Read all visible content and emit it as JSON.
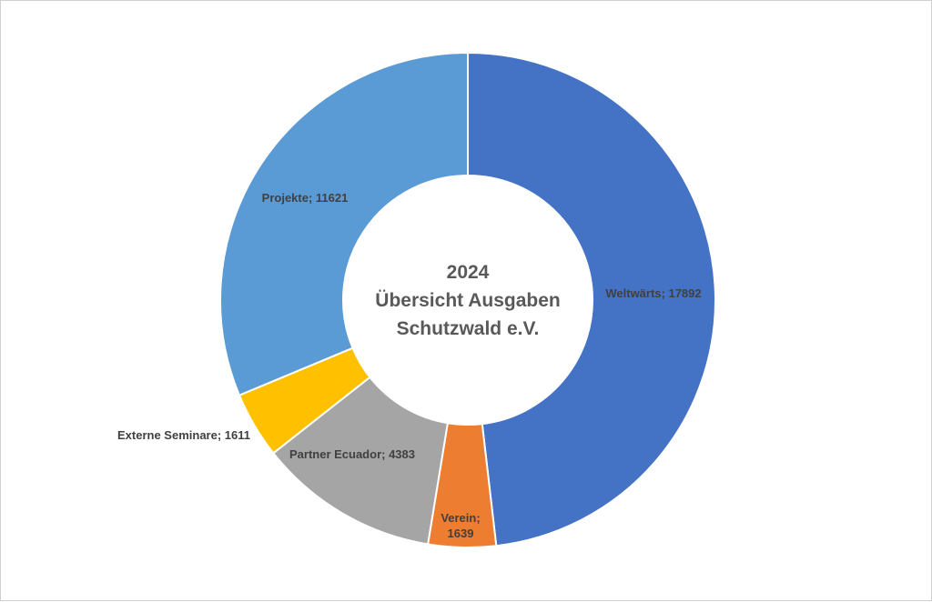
{
  "chart_data": {
    "type": "pie",
    "variant": "donut",
    "title_lines": [
      "2024",
      "Übersicht Ausgaben",
      "Schutzwald e.V."
    ],
    "slices": [
      {
        "label": "Weltwärts",
        "value": 17892,
        "color": "#4472C4",
        "display": [
          "Weltwärts; 17892"
        ]
      },
      {
        "label": "Verein",
        "value": 1639,
        "color": "#ED7D31",
        "display": [
          "Verein;",
          "1639"
        ]
      },
      {
        "label": "Partner Ecuador",
        "value": 4383,
        "color": "#A5A5A5",
        "display": [
          "Partner Ecuador; 4383"
        ]
      },
      {
        "label": "Externe Seminare",
        "value": 1611,
        "color": "#FFC000",
        "display": [
          "Externe Seminare; 1611"
        ]
      },
      {
        "label": "Projekte",
        "value": 11621,
        "color": "#5B9BD5",
        "display": [
          "Projekte; 11621"
        ]
      }
    ],
    "legend": "none"
  }
}
